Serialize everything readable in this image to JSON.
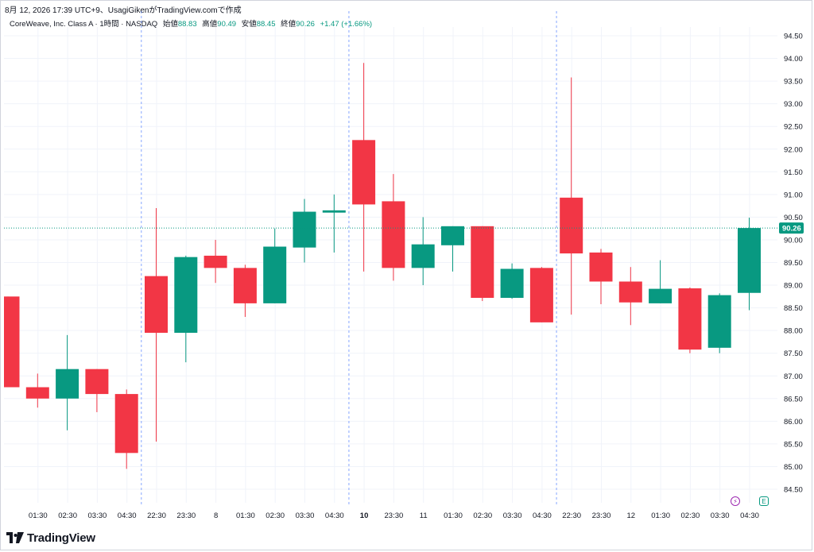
{
  "caption": "8月 12, 2026 17:39 UTC+9、UsagiGikenがTradingView.comで作成",
  "legend": {
    "symbol": "CoreWeave, Inc. Class A · 1時間 · NASDAQ",
    "open_label": "始値",
    "open": "88.83",
    "high_label": "高値",
    "high": "90.49",
    "low_label": "安値",
    "low": "88.45",
    "close_label": "終値",
    "close": "90.26",
    "change": "+1.47 (+1.66%)"
  },
  "price_tag": "90.26",
  "brand": "TradingView",
  "markers": {
    "split_icon": "lightning-icon",
    "earnings_icon": "E"
  },
  "colors": {
    "up": "#089981",
    "down": "#f23645",
    "session_line": "#2962ff",
    "price_line": "#089981"
  },
  "chart_data": {
    "type": "candlestick",
    "ylim": [
      84.2,
      94.8
    ],
    "yticks": [
      "94.50",
      "94.00",
      "93.50",
      "93.00",
      "92.50",
      "92.00",
      "91.50",
      "91.00",
      "90.50",
      "90.00",
      "89.50",
      "89.00",
      "88.50",
      "88.00",
      "87.50",
      "87.00",
      "86.50",
      "86.00",
      "85.50",
      "85.00",
      "84.50"
    ],
    "xticks": [
      "01:30",
      "02:30",
      "03:30",
      "04:30",
      "22:30",
      "23:30",
      "8",
      "01:30",
      "02:30",
      "03:30",
      "04:30",
      "10",
      "23:30",
      "11",
      "01:30",
      "02:30",
      "03:30",
      "04:30",
      "22:30",
      "23:30",
      "12",
      "01:30",
      "02:30",
      "03:30",
      "04:30",
      "22:30"
    ],
    "bold_ticks": [
      11
    ],
    "last_price": 90.26,
    "session_breaks_after": [
      4,
      11,
      18
    ],
    "candles": [
      {
        "o": 88.75,
        "h": 88.75,
        "l": 86.75,
        "c": 86.75
      },
      {
        "o": 86.75,
        "h": 87.05,
        "l": 86.3,
        "c": 86.5
      },
      {
        "o": 86.5,
        "h": 87.9,
        "l": 85.8,
        "c": 87.15
      },
      {
        "o": 87.15,
        "h": 87.15,
        "l": 86.2,
        "c": 86.6
      },
      {
        "o": 86.6,
        "h": 86.7,
        "l": 84.95,
        "c": 85.3
      },
      {
        "o": 89.2,
        "h": 90.7,
        "l": 85.55,
        "c": 87.95
      },
      {
        "o": 87.95,
        "h": 89.65,
        "l": 87.3,
        "c": 89.62
      },
      {
        "o": 89.65,
        "h": 90.0,
        "l": 89.05,
        "c": 89.38
      },
      {
        "o": 89.38,
        "h": 89.45,
        "l": 88.3,
        "c": 88.6
      },
      {
        "o": 88.6,
        "h": 90.25,
        "l": 88.6,
        "c": 89.85
      },
      {
        "o": 89.83,
        "h": 90.9,
        "l": 89.5,
        "c": 90.62
      },
      {
        "o": 90.6,
        "h": 91.0,
        "l": 89.72,
        "c": 90.65
      },
      {
        "o": 92.2,
        "h": 93.9,
        "l": 89.3,
        "c": 90.78
      },
      {
        "o": 90.85,
        "h": 91.45,
        "l": 89.1,
        "c": 89.38
      },
      {
        "o": 89.38,
        "h": 90.5,
        "l": 89.0,
        "c": 89.9
      },
      {
        "o": 89.88,
        "h": 90.3,
        "l": 89.3,
        "c": 90.3
      },
      {
        "o": 90.3,
        "h": 90.3,
        "l": 88.65,
        "c": 88.72
      },
      {
        "o": 88.72,
        "h": 89.48,
        "l": 88.7,
        "c": 89.36
      },
      {
        "o": 89.38,
        "h": 89.4,
        "l": 88.18,
        "c": 88.18
      },
      {
        "o": 90.93,
        "h": 93.58,
        "l": 88.35,
        "c": 89.7
      },
      {
        "o": 89.72,
        "h": 89.8,
        "l": 88.58,
        "c": 89.08
      },
      {
        "o": 89.08,
        "h": 89.4,
        "l": 88.12,
        "c": 88.62
      },
      {
        "o": 88.6,
        "h": 89.55,
        "l": 88.6,
        "c": 88.92
      },
      {
        "o": 88.93,
        "h": 88.95,
        "l": 87.5,
        "c": 87.58
      },
      {
        "o": 87.62,
        "h": 88.82,
        "l": 87.5,
        "c": 88.78
      },
      {
        "o": 88.83,
        "h": 90.49,
        "l": 88.45,
        "c": 90.26
      }
    ]
  }
}
